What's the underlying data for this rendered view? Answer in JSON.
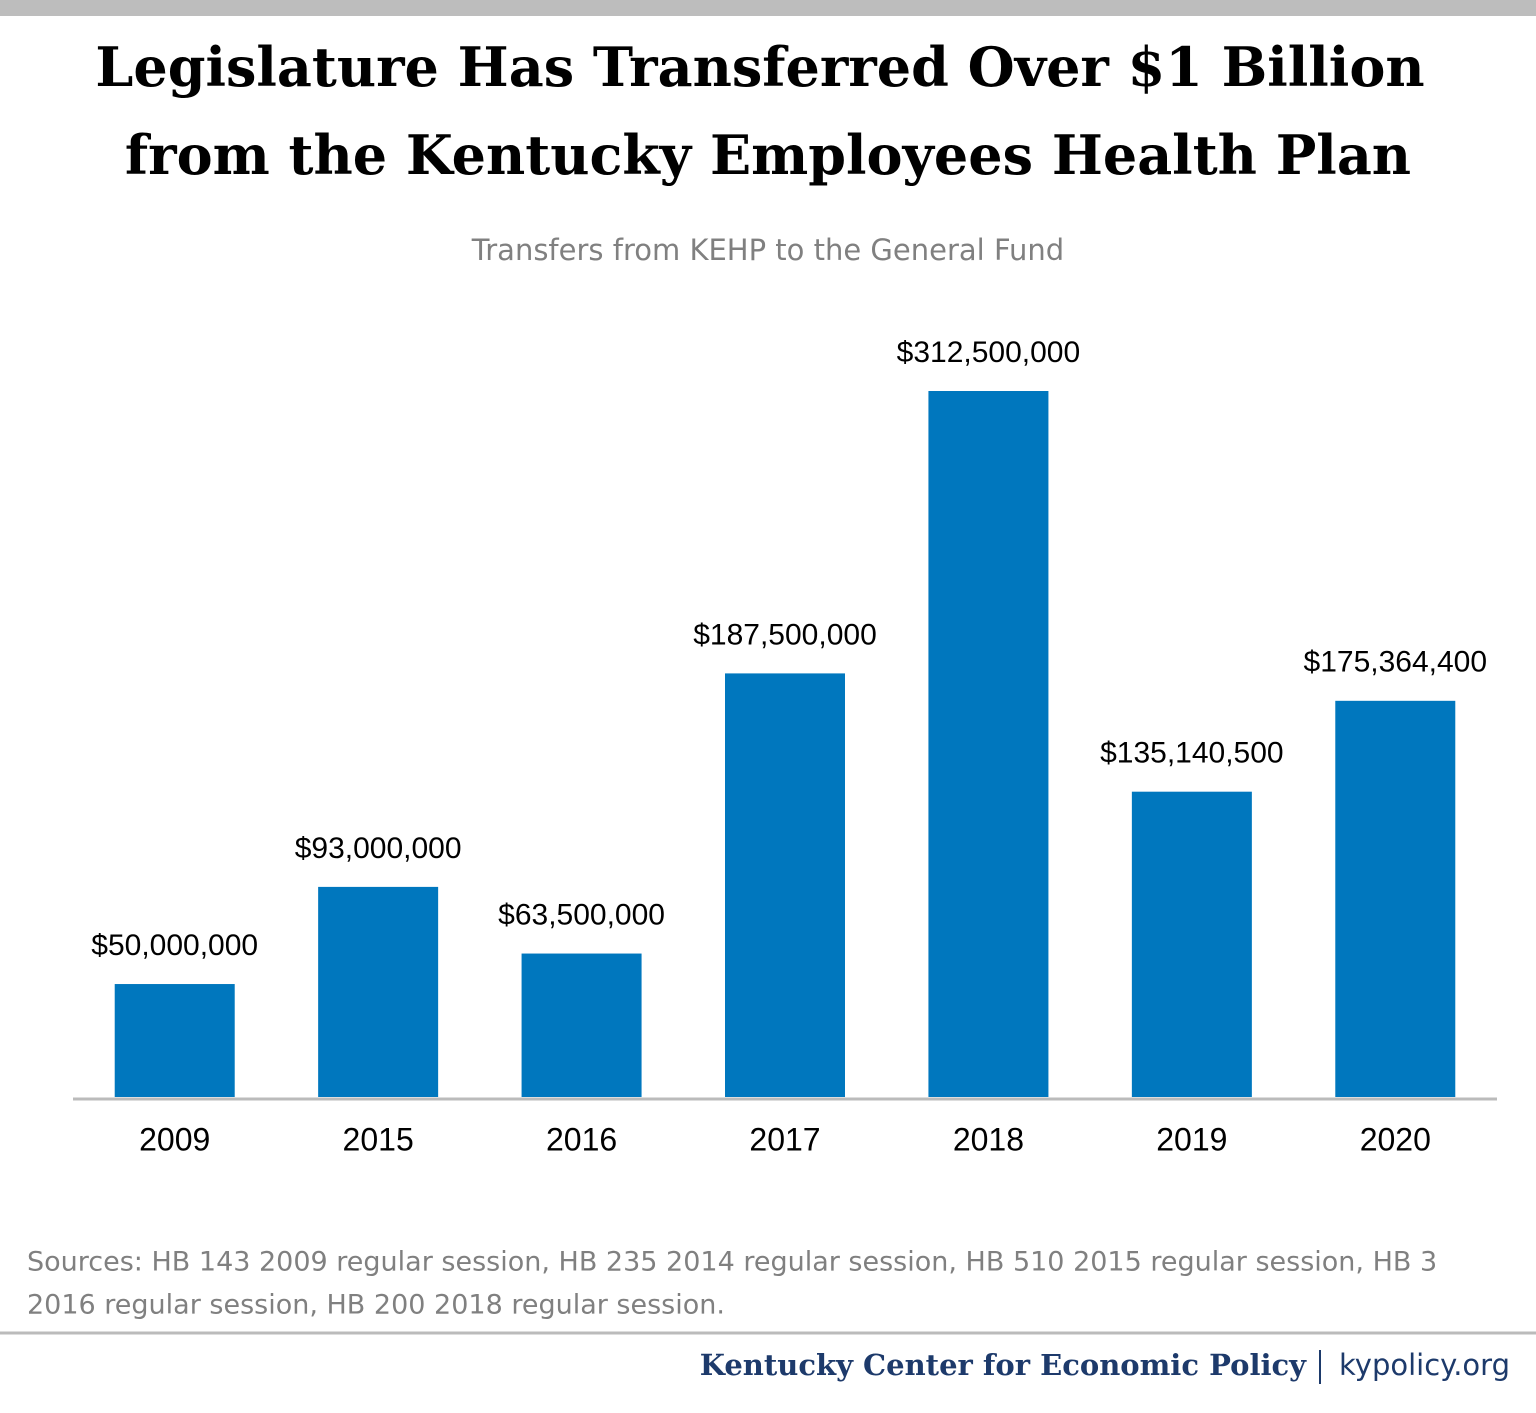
{
  "chart_data": {
    "type": "bar",
    "title": [
      "Legislature Has Transferred Over $1 Billion",
      "from the Kentucky Employees Health Plan"
    ],
    "subtitle": "Transfers from KEHP to the General Fund",
    "categories": [
      "2009",
      "2015",
      "2016",
      "2017",
      "2018",
      "2019",
      "2020"
    ],
    "values": [
      50000000,
      93000000,
      63500000,
      187500000,
      312500000,
      135140500,
      175364400
    ],
    "value_labels": [
      "$50,000,000",
      "$93,000,000",
      "$63,500,000",
      "$187,500,000",
      "$312,500,000",
      "$135,140,500",
      "$175,364,400"
    ],
    "color": "#0077be",
    "source": [
      "Sources: HB 143 2009 regular session, HB 235 2014 regular session, HB 510 2015 regular session, HB 3",
      "2016 regular session, HB 200 2018 regular session."
    ],
    "footer": {
      "organization": "Kentucky Center for Economic Policy",
      "url": "kypolicy.org"
    }
  }
}
